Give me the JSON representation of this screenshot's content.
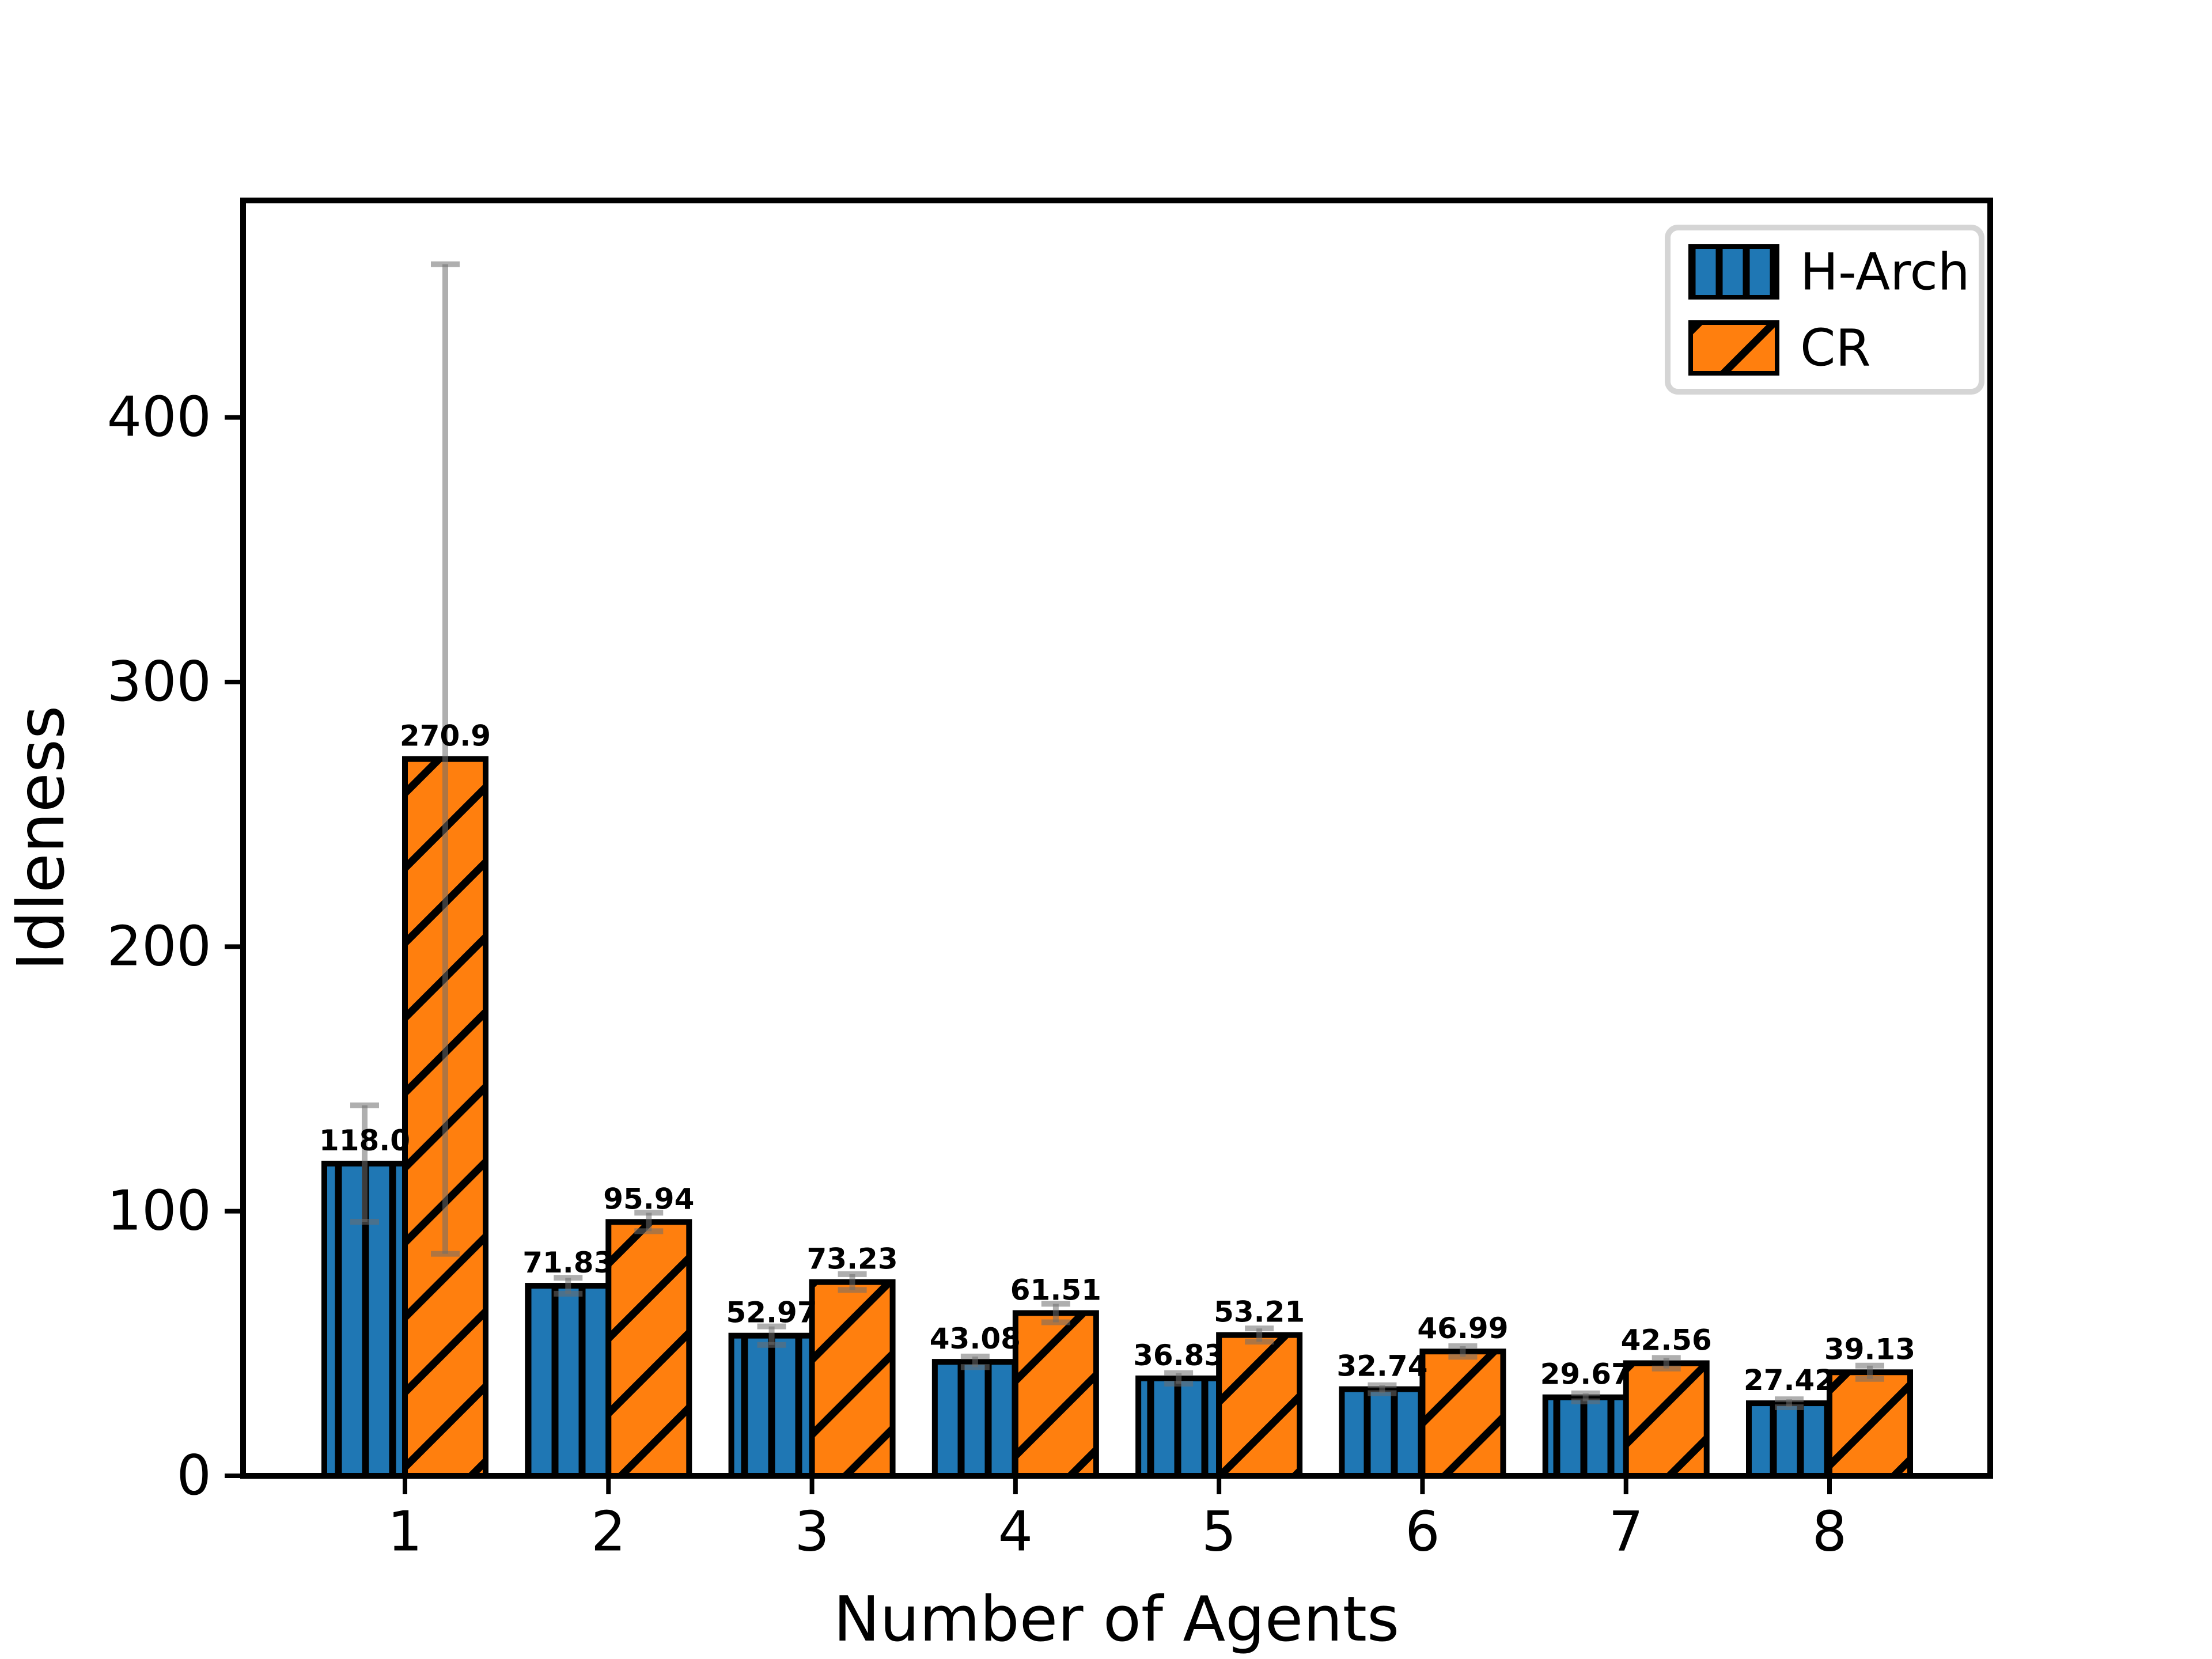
{
  "figure": {
    "background": "#ffffff"
  },
  "chart_data": {
    "type": "bar",
    "title": "",
    "xlabel": "Number of Agents",
    "ylabel": "Idleness",
    "categories": [
      "1",
      "2",
      "3",
      "4",
      "5",
      "6",
      "7",
      "8"
    ],
    "yticks": [
      0,
      100,
      200,
      300,
      400
    ],
    "ylim": [
      0,
      482
    ],
    "grid": false,
    "legend": {
      "position": "upper right",
      "items": [
        "H-Arch",
        "CR"
      ]
    },
    "series": [
      {
        "name": "H-Arch",
        "color": "#1f77b4",
        "hatch": "vertical",
        "values": [
          118.0,
          71.83,
          52.97,
          43.08,
          36.83,
          32.74,
          29.67,
          27.42
        ],
        "value_labels": [
          "118.0",
          "71.83",
          "52.97",
          "43.08",
          "36.83",
          "32.74",
          "29.67",
          "27.42"
        ],
        "errors": [
          22,
          3,
          3.5,
          2,
          2,
          1.5,
          1.5,
          1.5
        ]
      },
      {
        "name": "CR",
        "color": "#ff7f0e",
        "hatch": "diagonal",
        "values": [
          270.9,
          95.94,
          73.23,
          61.51,
          53.21,
          46.99,
          42.56,
          39.13
        ],
        "value_labels": [
          "270.9",
          "95.94",
          "73.23",
          "61.51",
          "53.21",
          "46.99",
          "42.56",
          "39.13"
        ],
        "errors": [
          187,
          3.5,
          3,
          3.5,
          2.5,
          2,
          2,
          2.5
        ]
      }
    ],
    "styles": {
      "bar_edge_color": "#000000",
      "hatch_color": "#000000",
      "error_bar_color": "rgba(110,110,110,0.55)",
      "axis_color": "#000000",
      "legend_border_color": "#d5d5d5",
      "legend_background": "#ffffff"
    }
  }
}
